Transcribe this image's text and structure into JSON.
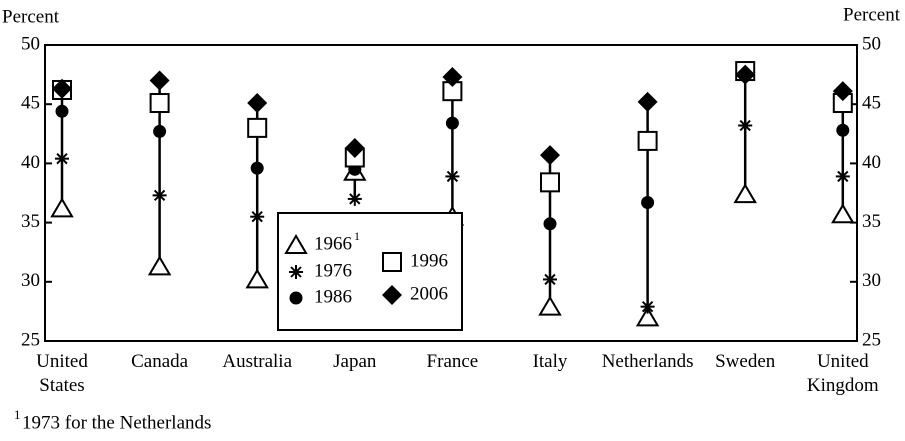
{
  "chart_data": {
    "type": "range-dot",
    "y_label": "Percent",
    "y2_label": "Percent",
    "categories": [
      "United\nStates",
      "Canada",
      "Australia",
      "Japan",
      "France",
      "Italy",
      "Netherlands",
      "Sweden",
      "United\nKingdom"
    ],
    "series": [
      {
        "name": "1966",
        "marker": "triangle",
        "color": "#000000",
        "values": [
          36.2,
          31.3,
          30.2,
          39.3,
          35.5,
          27.9,
          27.0,
          37.4,
          35.7
        ]
      },
      {
        "name": "1976",
        "marker": "asterisk",
        "color": "#000000",
        "values": [
          40.4,
          37.3,
          35.5,
          37.0,
          38.9,
          30.2,
          27.9,
          43.2,
          38.9
        ]
      },
      {
        "name": "1986",
        "marker": "circle",
        "color": "#000000",
        "values": [
          44.4,
          42.7,
          39.6,
          39.5,
          43.4,
          34.9,
          36.7,
          47.4,
          42.8
        ]
      },
      {
        "name": "1996",
        "marker": "square",
        "color": "#000000",
        "values": [
          46.2,
          45.1,
          43.0,
          40.5,
          46.1,
          38.4,
          41.9,
          47.8,
          45.1
        ]
      },
      {
        "name": "2006",
        "marker": "diamond",
        "color": "#000000",
        "values": [
          46.3,
          47.0,
          45.1,
          41.3,
          47.3,
          40.7,
          45.2,
          47.5,
          46.1
        ]
      }
    ],
    "legend_footnote_marker": "1",
    "ylim": [
      25,
      50
    ],
    "yticks": [
      25,
      30,
      35,
      40,
      45,
      50
    ],
    "y2lim": [
      25,
      50
    ],
    "y2ticks": [
      25,
      30,
      35,
      40,
      45,
      50
    ],
    "footnote_marker": "1",
    "footnote": "1973 for the Netherlands"
  }
}
